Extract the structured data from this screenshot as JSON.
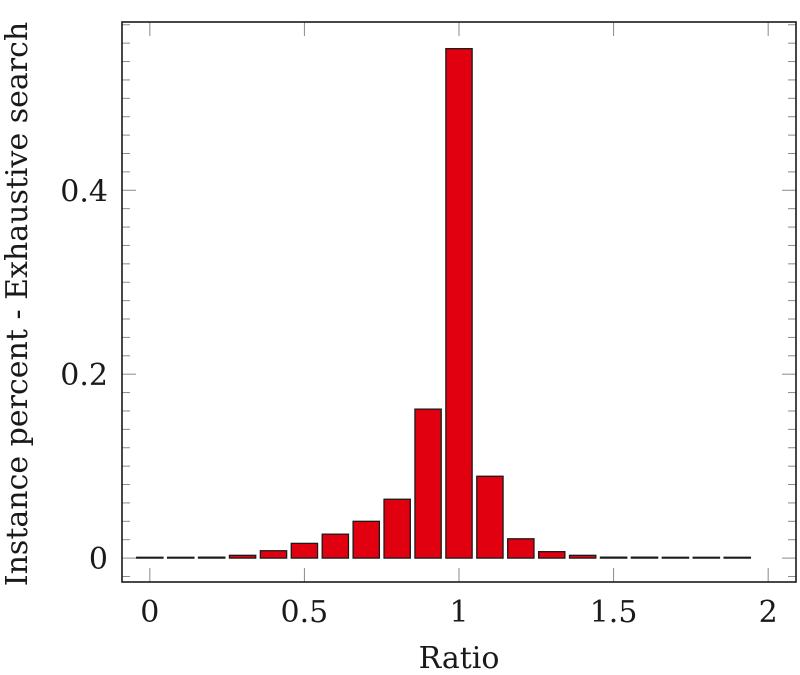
{
  "chart_data": {
    "type": "bar",
    "title": "",
    "xlabel": "Ratio",
    "ylabel": "Instance percent - Exhaustive search",
    "x": [
      0,
      0.1,
      0.2,
      0.3,
      0.4,
      0.5,
      0.6,
      0.7,
      0.8,
      0.9,
      1.0,
      1.1,
      1.2,
      1.3,
      1.4,
      1.5,
      1.6,
      1.7,
      1.8,
      1.9
    ],
    "values": [
      0.0005,
      0.0005,
      0.001,
      0.003,
      0.008,
      0.016,
      0.026,
      0.04,
      0.064,
      0.162,
      0.554,
      0.089,
      0.021,
      0.007,
      0.003,
      0.001,
      0.001,
      0.0003,
      0.0003,
      0.0003
    ],
    "xlim": [
      -0.09,
      2.09
    ],
    "ylim": [
      -0.026,
      0.583
    ],
    "xticks": [
      0,
      0.5,
      1,
      1.5,
      2
    ],
    "xtick_labels": [
      "0",
      "0.5",
      "1",
      "1.5",
      "2"
    ],
    "yticks": [
      0,
      0.2,
      0.4
    ],
    "ytick_labels": [
      "0",
      "0.2",
      "0.4"
    ],
    "bar_width": 0.085,
    "grid": false,
    "legend": null,
    "colors": {
      "bar_fill": "#e0000f",
      "bar_edge": "#1a1a1a",
      "axis": "#1a1a1a"
    }
  }
}
